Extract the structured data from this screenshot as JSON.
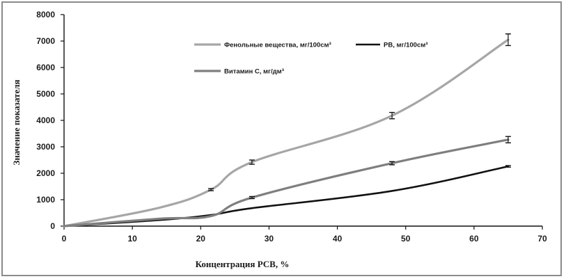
{
  "chart_data": {
    "type": "line",
    "xlabel": "Концентрация  РСВ, %",
    "ylabel": "Значение показателя",
    "xlim": [
      0,
      70
    ],
    "ylim": [
      0,
      8000
    ],
    "xticks": [
      0,
      10,
      20,
      30,
      40,
      50,
      60,
      70
    ],
    "yticks": [
      0,
      1000,
      2000,
      3000,
      4000,
      5000,
      6000,
      7000,
      8000
    ],
    "grid": false,
    "legend_placement": "top",
    "series": [
      {
        "name": "Фенольные вещества, мг/100см³",
        "color": "#a6a6a6",
        "x": [
          0,
          14,
          21.5,
          27.5,
          48,
          65
        ],
        "y": [
          0,
          700,
          1380,
          2420,
          4180,
          7050
        ],
        "error": [
          0,
          0,
          40,
          80,
          120,
          220
        ]
      },
      {
        "name": "РВ, мг/100см³",
        "color": "#111111",
        "x": [
          0,
          14,
          21.5,
          27.5,
          48,
          65
        ],
        "y": [
          0,
          230,
          420,
          680,
          1330,
          2260
        ],
        "error": [
          0,
          0,
          0,
          0,
          0,
          30
        ]
      },
      {
        "name": "Витамин С, мг/дм³",
        "color": "#7f7f7f",
        "x": [
          0,
          14,
          21.5,
          27.5,
          48,
          65
        ],
        "y": [
          0,
          280,
          380,
          1080,
          2380,
          3270
        ],
        "error": [
          0,
          0,
          0,
          40,
          60,
          120
        ]
      }
    ]
  }
}
